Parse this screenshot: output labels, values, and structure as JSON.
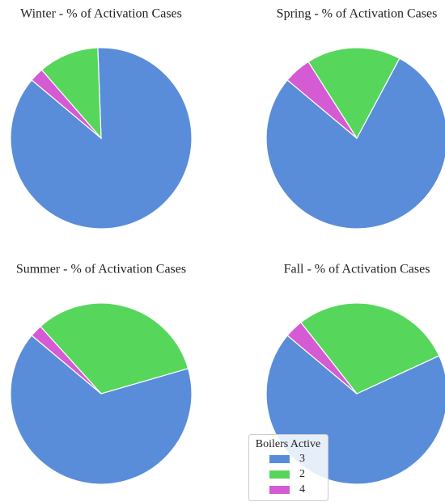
{
  "chart_data": [
    {
      "type": "pie",
      "title": "Winter - % of Activation Cases",
      "categories": [
        "3",
        "2",
        "4"
      ],
      "values": [
        86.7,
        10.8,
        2.5
      ],
      "colors": [
        "#598dd9",
        "#57d65c",
        "#d45bd4"
      ],
      "startangle": 140
    },
    {
      "type": "pie",
      "title": "Spring - % of Activation Cases",
      "categories": [
        "3",
        "2",
        "4"
      ],
      "values": [
        78.3,
        16.8,
        4.9
      ],
      "colors": [
        "#598dd9",
        "#57d65c",
        "#d45bd4"
      ],
      "startangle": 140
    },
    {
      "type": "pie",
      "title": "Summer - % of Activation Cases",
      "categories": [
        "3",
        "2",
        "4"
      ],
      "values": [
        65.6,
        32.2,
        2.2
      ],
      "colors": [
        "#598dd9",
        "#57d65c",
        "#d45bd4"
      ],
      "startangle": 140
    },
    {
      "type": "pie",
      "title": "Fall - % of Activation Cases",
      "categories": [
        "3",
        "2",
        "4"
      ],
      "values": [
        68.0,
        28.7,
        3.3
      ],
      "colors": [
        "#598dd9",
        "#57d65c",
        "#d45bd4"
      ],
      "startangle": 140,
      "legend_title": "Boilers Active"
    }
  ]
}
